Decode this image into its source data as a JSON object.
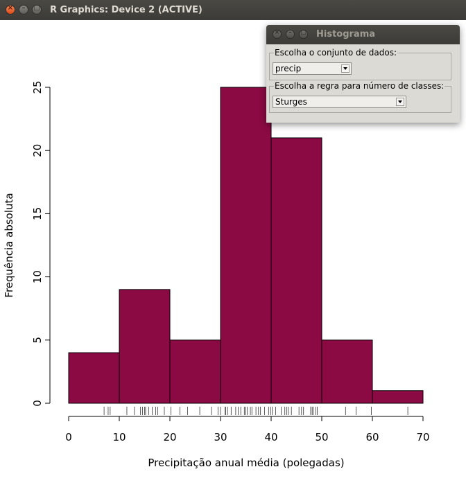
{
  "window": {
    "title": "R Graphics: Device 2 (ACTIVE)"
  },
  "dialog": {
    "title": "Histograma",
    "dataset_group_label": "Escolha o conjunto de dados:",
    "dataset_value": "precip",
    "rule_group_label": "Escolha a regra para número de classes:",
    "rule_value": "Sturges"
  },
  "colors": {
    "bar_fill": "#8b0a43",
    "titlebar": "#3c3b37"
  },
  "icons": [
    "close-icon",
    "minimize-icon",
    "maximize-icon",
    "dropdown-arrow-icon"
  ],
  "chart_data": {
    "type": "bar",
    "title": "",
    "xlabel": "Precipitação anual média (polegadas)",
    "ylabel": "Frequência absoluta",
    "bins": [
      [
        0,
        10
      ],
      [
        10,
        20
      ],
      [
        20,
        30
      ],
      [
        30,
        40
      ],
      [
        40,
        50
      ],
      [
        50,
        60
      ],
      [
        60,
        70
      ]
    ],
    "values": [
      4,
      9,
      5,
      25,
      21,
      5,
      1
    ],
    "xlim": [
      0,
      70
    ],
    "ylim": [
      0,
      25
    ],
    "x_ticks": [
      "0",
      "10",
      "20",
      "30",
      "40",
      "50",
      "60",
      "70"
    ],
    "y_ticks": [
      "0",
      "5",
      "10",
      "15",
      "20",
      "25"
    ],
    "grid": false,
    "rug": [
      7.0,
      7.8,
      8.2,
      11.5,
      13.0,
      14.2,
      14.6,
      15.0,
      15.2,
      15.8,
      16.5,
      17.2,
      17.6,
      18.9,
      20.2,
      22.0,
      23.5,
      25.9,
      28.2,
      29.5,
      30.0,
      30.9,
      31.0,
      31.4,
      32.1,
      33.0,
      33.5,
      34.0,
      34.7,
      35.0,
      35.3,
      35.9,
      36.2,
      37.0,
      37.5,
      37.9,
      38.7,
      39.5,
      39.9,
      40.2,
      40.9,
      42.0,
      42.7,
      43.1,
      43.4,
      44.0,
      45.5,
      46.0,
      46.4,
      47.8,
      48.1,
      48.3,
      48.8,
      49.1,
      54.7,
      56.8,
      59.8,
      67.0
    ]
  }
}
